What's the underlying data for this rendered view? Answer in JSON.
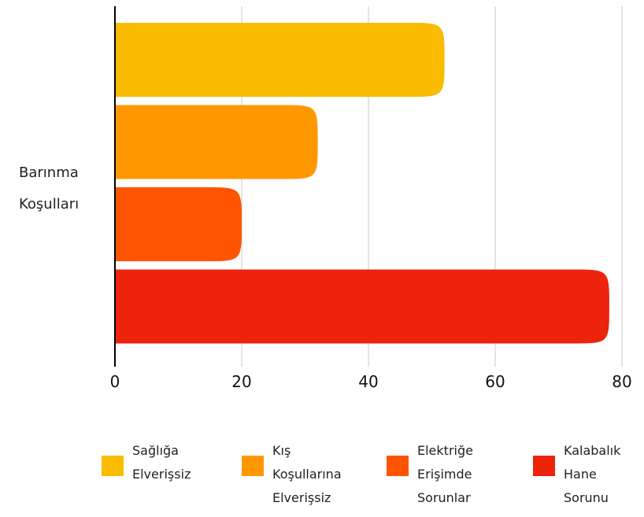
{
  "chart_data": {
    "type": "bar",
    "orientation": "horizontal",
    "categories": [
      "Barınma\nKoşulları"
    ],
    "series": [
      {
        "name": "Sağlığa\nElverişsiz",
        "values": [
          52
        ],
        "color": "#F9BC00"
      },
      {
        "name": "Kış\nKoşullarına\nElverişsiz",
        "values": [
          32
        ],
        "color": "#FF9800"
      },
      {
        "name": "Elektriğe\nErişimde\nSorunlar",
        "values": [
          20
        ],
        "color": "#FF5400"
      },
      {
        "name": "Kalabalık\nHane\nSorunu",
        "values": [
          78
        ],
        "color": "#EE230C"
      }
    ],
    "xlim": [
      0,
      80
    ],
    "xticks": [
      "0",
      "20",
      "40",
      "60",
      "80"
    ],
    "grid": true,
    "legend": "bottom"
  }
}
